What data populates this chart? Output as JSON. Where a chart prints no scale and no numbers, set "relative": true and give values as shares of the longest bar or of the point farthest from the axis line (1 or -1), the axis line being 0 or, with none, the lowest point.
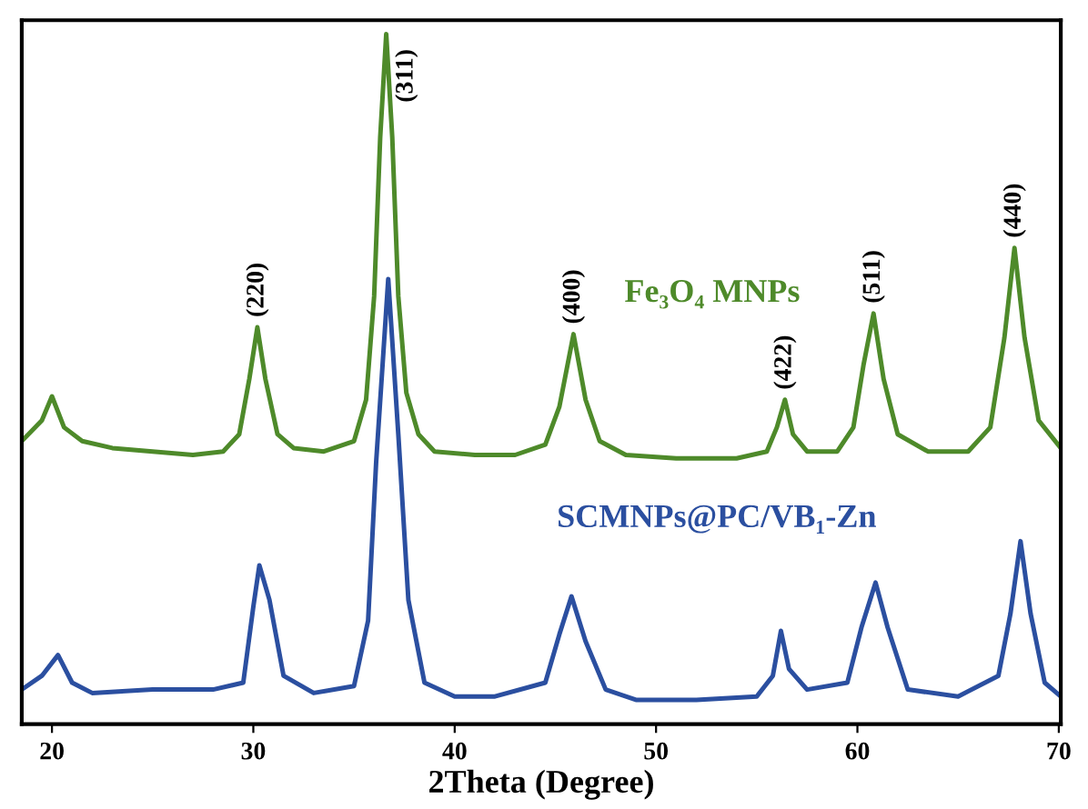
{
  "chart_data": {
    "type": "line",
    "relative": true,
    "xlabel": "2Theta (Degree)",
    "xlim": [
      18.5,
      70.1
    ],
    "xticks": [
      20,
      30,
      40,
      50,
      60,
      70
    ],
    "grid": false,
    "legend": false,
    "marker": "none",
    "line_style": "solid",
    "series": [
      {
        "name": "Fe₃O₄ MNPs",
        "color": "#4e8a2a",
        "x": [
          18.5,
          19.5,
          20.0,
          20.6,
          21.5,
          23,
          25,
          27,
          28.5,
          29.3,
          29.8,
          30.2,
          30.6,
          31.2,
          32,
          33.5,
          35,
          35.6,
          36.0,
          36.3,
          36.6,
          36.9,
          37.2,
          37.6,
          38.2,
          39,
          41,
          43,
          44.5,
          45.2,
          45.9,
          46.5,
          47.2,
          48.5,
          51,
          54,
          55.5,
          56.0,
          56.4,
          56.8,
          57.5,
          59,
          59.8,
          60.3,
          60.8,
          61.3,
          62,
          63.5,
          65.5,
          66.6,
          67.3,
          67.8,
          68.3,
          69,
          70.1
        ],
        "values": [
          0.41,
          0.44,
          0.475,
          0.43,
          0.41,
          0.4,
          0.395,
          0.39,
          0.395,
          0.42,
          0.5,
          0.575,
          0.5,
          0.42,
          0.4,
          0.395,
          0.41,
          0.47,
          0.62,
          0.85,
          1.0,
          0.85,
          0.62,
          0.48,
          0.42,
          0.395,
          0.39,
          0.39,
          0.405,
          0.46,
          0.565,
          0.47,
          0.41,
          0.39,
          0.385,
          0.385,
          0.395,
          0.43,
          0.47,
          0.42,
          0.395,
          0.395,
          0.43,
          0.52,
          0.595,
          0.5,
          0.42,
          0.395,
          0.395,
          0.43,
          0.56,
          0.69,
          0.56,
          0.44,
          0.4
        ]
      },
      {
        "name": "SCMNPs@PC/VB₁-Zn",
        "color": "#2b4fa0",
        "x": [
          18.5,
          19.5,
          20.3,
          21,
          22,
          25,
          28,
          29.5,
          30,
          30.3,
          30.8,
          31.5,
          33,
          35,
          35.7,
          36.1,
          36.7,
          37.2,
          37.7,
          38.5,
          40,
          42,
          44.5,
          45.2,
          45.8,
          46.5,
          47.5,
          49,
          52,
          55,
          55.8,
          56.2,
          56.6,
          57.5,
          59.5,
          60.2,
          60.9,
          61.5,
          62.5,
          65,
          67,
          67.6,
          68.1,
          68.6,
          69.3,
          70.1
        ],
        "values": [
          0.05,
          0.07,
          0.1,
          0.06,
          0.045,
          0.05,
          0.05,
          0.06,
          0.17,
          0.23,
          0.18,
          0.07,
          0.045,
          0.055,
          0.15,
          0.38,
          0.645,
          0.42,
          0.18,
          0.06,
          0.04,
          0.04,
          0.06,
          0.13,
          0.185,
          0.12,
          0.05,
          0.035,
          0.035,
          0.04,
          0.07,
          0.135,
          0.08,
          0.05,
          0.06,
          0.14,
          0.205,
          0.14,
          0.05,
          0.04,
          0.07,
          0.16,
          0.265,
          0.16,
          0.06,
          0.04
        ]
      }
    ],
    "annotations": [
      {
        "text": "(220)",
        "x": 30.2,
        "y": 0.575
      },
      {
        "text": "(311)",
        "x": 36.6,
        "y": 1.0
      },
      {
        "text": "(400)",
        "x": 45.9,
        "y": 0.565
      },
      {
        "text": "(422)",
        "x": 56.4,
        "y": 0.47
      },
      {
        "text": "(511)",
        "x": 60.8,
        "y": 0.595
      },
      {
        "text": "(440)",
        "x": 67.8,
        "y": 0.69
      }
    ]
  }
}
